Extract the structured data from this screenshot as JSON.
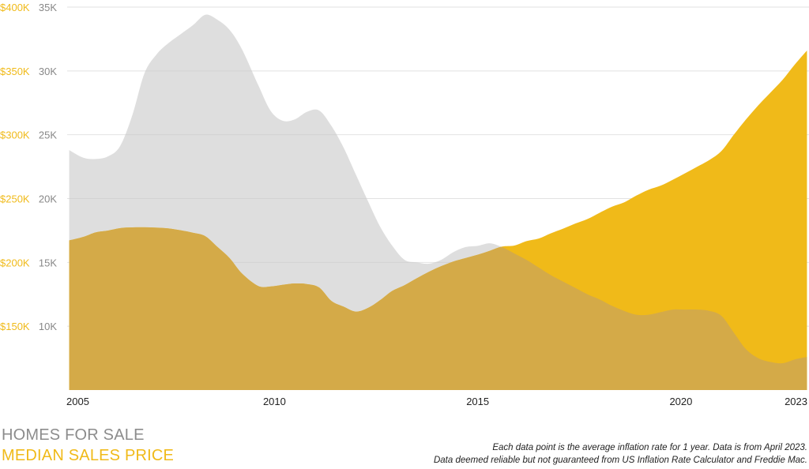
{
  "chart_data": {
    "type": "area",
    "colors": {
      "homes_for_sale": "#c9c9c9",
      "median_sales_price": "#f0ba19",
      "overlap": "#d4aa48",
      "left_axis": "#f0ba19",
      "right_axis": "#888888"
    },
    "x_ticks": [
      "2005",
      "2010",
      "2015",
      "2020",
      "2023"
    ],
    "xlim": [
      2004.9,
      2023.15
    ],
    "y_left": {
      "ticks": [
        "$150K",
        "$200K",
        "$250K",
        "$300K",
        "$350K",
        "$400K"
      ],
      "values": [
        150,
        200,
        250,
        300,
        350,
        400
      ],
      "ylim": [
        100,
        400
      ]
    },
    "y_right": {
      "ticks": [
        "10K",
        "15K",
        "20K",
        "25K",
        "30K",
        "35K"
      ],
      "values": [
        10,
        15,
        20,
        25,
        30,
        35
      ],
      "ylim": [
        5,
        35
      ]
    },
    "grid": true,
    "series": [
      {
        "name": "HOMES FOR SALE",
        "axis": "right",
        "x": [
          2004.95,
          2005.3,
          2005.6,
          2005.9,
          2006.2,
          2006.5,
          2006.8,
          2007.1,
          2007.4,
          2007.7,
          2008.0,
          2008.3,
          2008.6,
          2008.9,
          2009.2,
          2009.6,
          2009.9,
          2010.2,
          2010.5,
          2010.8,
          2011.1,
          2011.4,
          2011.7,
          2012.0,
          2012.3,
          2012.6,
          2012.9,
          2013.2,
          2013.5,
          2013.8,
          2014.1,
          2014.4,
          2014.7,
          2015.0,
          2015.3,
          2015.6,
          2015.9,
          2016.2,
          2016.5,
          2016.8,
          2017.1,
          2017.4,
          2017.7,
          2018.0,
          2018.3,
          2018.6,
          2018.9,
          2019.2,
          2019.5,
          2019.8,
          2020.1,
          2020.4,
          2020.7,
          2021.0,
          2021.3,
          2021.6,
          2021.9,
          2022.2,
          2022.5,
          2022.8,
          2023.1
        ],
        "values": [
          23.8,
          23.2,
          23.1,
          23.3,
          24.1,
          26.5,
          29.8,
          31.3,
          32.2,
          32.9,
          33.6,
          34.4,
          34.0,
          33.2,
          31.7,
          28.9,
          26.9,
          26.1,
          26.2,
          26.8,
          26.9,
          25.7,
          24.0,
          21.9,
          19.8,
          17.8,
          16.3,
          15.2,
          15.0,
          14.9,
          15.2,
          15.8,
          16.2,
          16.3,
          16.5,
          16.2,
          15.7,
          15.2,
          14.6,
          14.0,
          13.5,
          13.0,
          12.5,
          12.1,
          11.6,
          11.2,
          10.9,
          10.9,
          11.1,
          11.3,
          11.3,
          11.3,
          11.2,
          10.8,
          9.5,
          8.2,
          7.5,
          7.2,
          7.1,
          7.4,
          7.6
        ]
      },
      {
        "name": "MEDIAN SALES PRICE",
        "axis": "left",
        "x": [
          2004.95,
          2005.3,
          2005.6,
          2005.9,
          2006.2,
          2006.5,
          2006.8,
          2007.1,
          2007.4,
          2007.7,
          2008.0,
          2008.3,
          2008.6,
          2008.9,
          2009.2,
          2009.6,
          2009.9,
          2010.2,
          2010.5,
          2010.8,
          2011.1,
          2011.4,
          2011.7,
          2012.0,
          2012.3,
          2012.6,
          2012.9,
          2013.2,
          2013.5,
          2013.8,
          2014.1,
          2014.4,
          2014.7,
          2015.0,
          2015.3,
          2015.6,
          2015.9,
          2016.2,
          2016.5,
          2016.8,
          2017.1,
          2017.4,
          2017.7,
          2018.0,
          2018.3,
          2018.6,
          2018.9,
          2019.2,
          2019.5,
          2019.8,
          2020.1,
          2020.4,
          2020.7,
          2021.0,
          2021.3,
          2021.6,
          2021.9,
          2022.2,
          2022.5,
          2022.8,
          2023.1
        ],
        "values": [
          217.2,
          220.0,
          223.5,
          224.9,
          226.8,
          227.4,
          227.5,
          227.2,
          226.6,
          225.1,
          223.2,
          220.5,
          212.0,
          203.2,
          191.3,
          181.5,
          181.1,
          182.4,
          183.5,
          183.0,
          180.3,
          169.8,
          165.3,
          161.4,
          164.3,
          170.4,
          177.7,
          182.1,
          187.5,
          192.6,
          197.0,
          200.7,
          203.4,
          206.0,
          209.1,
          212.4,
          213.2,
          216.7,
          218.7,
          222.8,
          226.4,
          230.4,
          234.0,
          238.9,
          243.6,
          247.0,
          252.3,
          256.9,
          260.1,
          264.8,
          269.8,
          275.0,
          280.2,
          287.4,
          300.0,
          312.0,
          323.0,
          333.0,
          343.0,
          355.0,
          366.0
        ]
      }
    ]
  },
  "legend": {
    "homes_for_sale": "HOMES FOR SALE",
    "median_sales_price": "MEDIAN SALES PRICE"
  },
  "footnote": {
    "line1": "Each data point is the average inflation rate for 1 year. Data is from April 2023.",
    "line2": "Data deemed reliable but not guaranteed from US Inflation Rate Calculator and Freddie Mac."
  }
}
